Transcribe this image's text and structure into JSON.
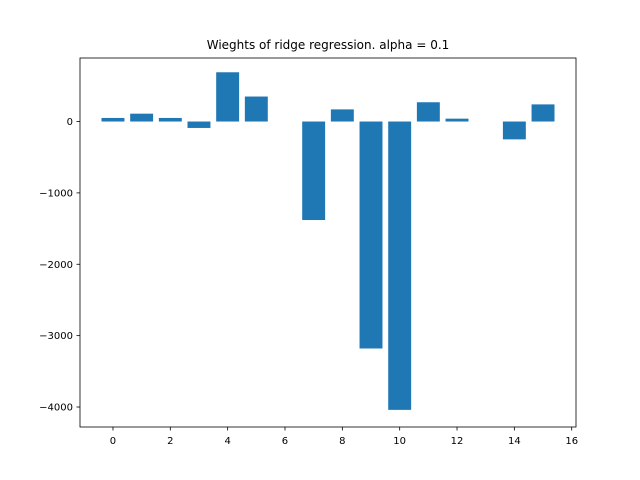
{
  "chart_data": {
    "type": "bar",
    "title": "Wieghts of ridge regression. alpha = 0.1",
    "xlabel": "",
    "ylabel": "",
    "x": [
      0,
      1,
      2,
      3,
      4,
      5,
      6,
      7,
      8,
      9,
      10,
      11,
      12,
      13,
      14,
      15
    ],
    "values": [
      50,
      110,
      50,
      -90,
      690,
      350,
      0,
      -1380,
      170,
      -3180,
      -4040,
      270,
      40,
      0,
      -250,
      240
    ],
    "xlim": [
      -1.15,
      16.15
    ],
    "ylim": [
      -4280,
      890
    ],
    "xticks": [
      0,
      2,
      4,
      6,
      8,
      10,
      12,
      14,
      16
    ],
    "xtick_labels": [
      "0",
      "2",
      "4",
      "6",
      "8",
      "10",
      "12",
      "14",
      "16"
    ],
    "yticks": [
      0,
      -1000,
      -2000,
      -3000,
      -4000
    ],
    "ytick_labels": [
      "0",
      "−1000",
      "−2000",
      "−3000",
      "−4000"
    ],
    "bar_color": "#1f77b4",
    "grid": false,
    "legend": "none"
  }
}
